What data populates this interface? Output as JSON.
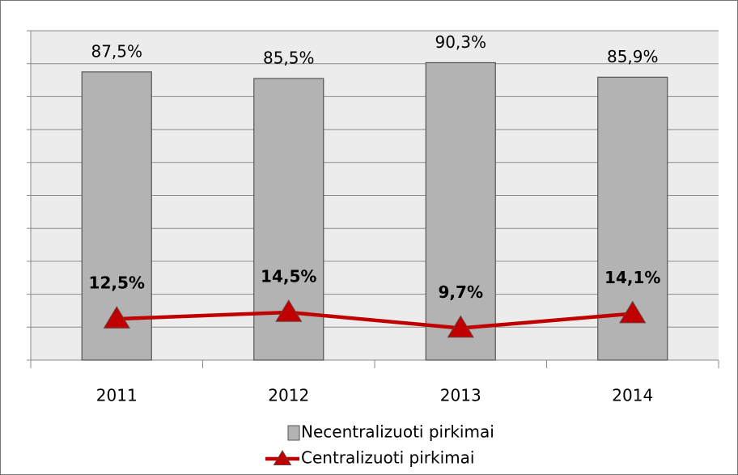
{
  "chart_data": {
    "type": "bar",
    "categories": [
      "2011",
      "2012",
      "2013",
      "2014"
    ],
    "series": [
      {
        "name": "Necentralizuoti pirkimai",
        "type": "bar",
        "color": "#b3b3b3",
        "values": [
          87.5,
          85.5,
          90.3,
          85.9
        ],
        "value_labels": [
          "87,5%",
          "85,5%",
          "90,3%",
          "85,9%"
        ]
      },
      {
        "name": "Centralizuoti pirkimai",
        "type": "line",
        "color": "#c00000",
        "values": [
          12.5,
          14.5,
          9.7,
          14.1
        ],
        "value_labels": [
          "12,5%",
          "14,5%",
          "9,7%",
          "14,1%"
        ]
      }
    ],
    "ylim": [
      0,
      100
    ],
    "yticks": [
      0,
      10,
      20,
      30,
      40,
      50,
      60,
      70,
      80,
      90,
      100
    ],
    "grid": true
  }
}
